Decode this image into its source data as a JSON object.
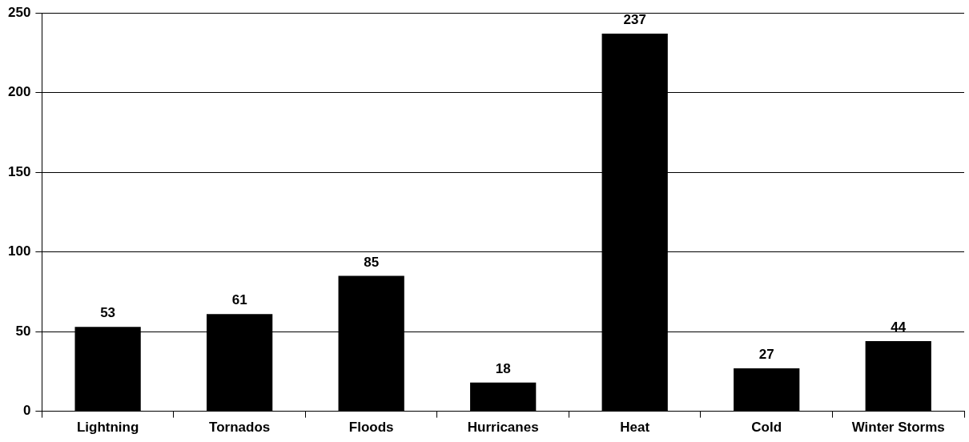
{
  "chart_data": {
    "type": "bar",
    "categories": [
      "Lightning",
      "Tornados",
      "Floods",
      "Hurricanes",
      "Heat",
      "Cold",
      "Winter Storms"
    ],
    "values": [
      53,
      61,
      85,
      18,
      237,
      27,
      44
    ],
    "color": "#000000",
    "ylim": [
      0,
      250
    ],
    "yticks": [
      0,
      50,
      100,
      150,
      200,
      250
    ],
    "grid": "y",
    "legend": false,
    "data_labels": true
  }
}
